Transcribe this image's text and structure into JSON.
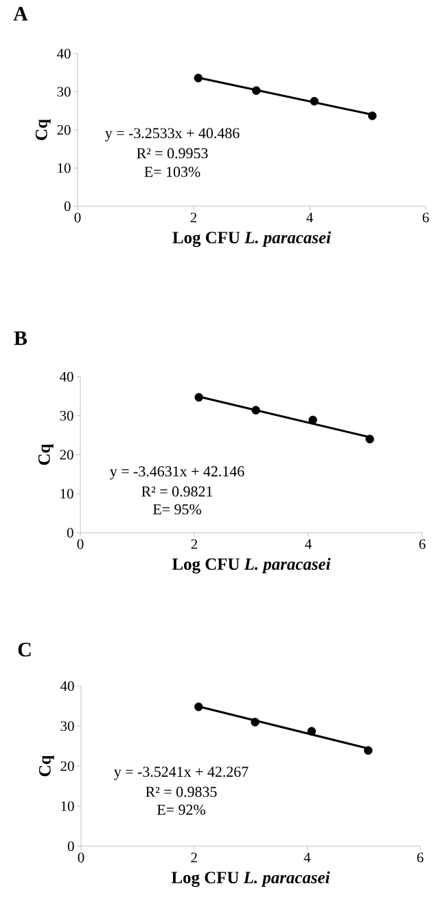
{
  "chart_data": [
    {
      "type": "scatter",
      "title": "A",
      "xlabel": "Log CFU  *L. paracasei*",
      "ylabel": "Cq",
      "xlim": [
        0,
        6
      ],
      "xticks": [
        0,
        2,
        4,
        6
      ],
      "ylim": [
        0,
        40
      ],
      "yticks": [
        0,
        10,
        20,
        30,
        40
      ],
      "series": [
        {
          "marker": "circle",
          "color": "#000000",
          "x": [
            2.08,
            3.08,
            4.08,
            5.08
          ],
          "values": [
            33.6,
            30.3,
            27.5,
            23.7
          ]
        },
        {
          "type": "line",
          "marker": "none",
          "color": "#000000",
          "x": [
            2.08,
            5.08
          ],
          "values": [
            33.7,
            24.0
          ]
        }
      ],
      "annotations": [
        "y = -3.2533x + 40.486",
        "R² = 0.9953",
        "E= 103%"
      ]
    },
    {
      "type": "scatter",
      "title": "B",
      "xlabel": "Log CFU *L. paracasei*",
      "ylabel": "Cq",
      "xlim": [
        0,
        6
      ],
      "xticks": [
        0,
        2,
        4,
        6
      ],
      "ylim": [
        0,
        40
      ],
      "yticks": [
        0,
        10,
        20,
        30,
        40
      ],
      "series": [
        {
          "marker": "circle",
          "color": "#000000",
          "x": [
            2.08,
            3.08,
            4.08,
            5.08
          ],
          "values": [
            34.7,
            31.4,
            28.9,
            24.0
          ]
        },
        {
          "type": "line",
          "marker": "none",
          "color": "#000000",
          "x": [
            2.08,
            5.08
          ],
          "values": [
            34.9,
            24.5
          ]
        }
      ],
      "annotations": [
        "y = -3.4631x + 42.146",
        "R² = 0.9821",
        "E= 95%"
      ]
    },
    {
      "type": "scatter",
      "title": "C",
      "xlabel": "Log CFU *L. paracasei*",
      "ylabel": "Cq",
      "xlim": [
        0,
        6
      ],
      "xticks": [
        0,
        2,
        4,
        6
      ],
      "ylim": [
        0,
        40
      ],
      "yticks": [
        0,
        10,
        20,
        30,
        40
      ],
      "series": [
        {
          "marker": "circle",
          "color": "#000000",
          "x": [
            2.08,
            3.08,
            4.08,
            5.08
          ],
          "values": [
            34.8,
            31.0,
            28.7,
            23.9
          ]
        },
        {
          "type": "line",
          "marker": "none",
          "color": "#000000",
          "x": [
            2.08,
            5.08
          ],
          "values": [
            34.9,
            24.4
          ]
        }
      ],
      "annotations": [
        "y = -3.5241x + 42.267",
        "R² = 0.9835",
        "E= 92%"
      ]
    }
  ]
}
